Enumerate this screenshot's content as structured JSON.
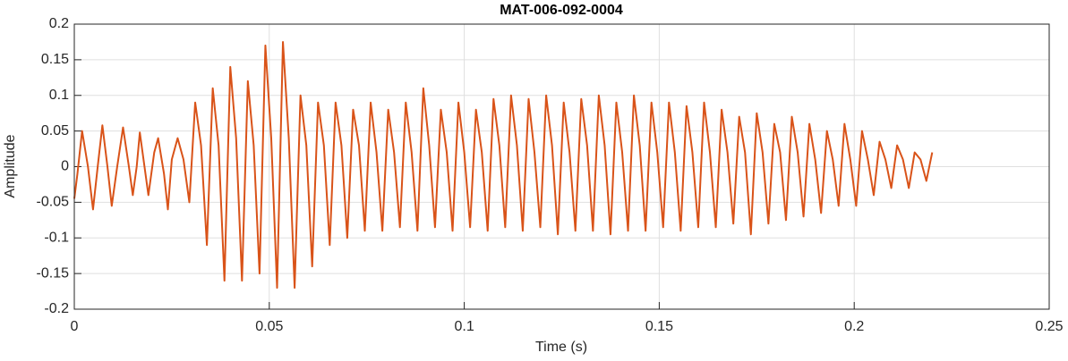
{
  "chart_data": {
    "type": "line",
    "title": "MAT-006-092-0004",
    "x_label": "Time (s)",
    "y_label": "Amplitude",
    "color": "#d95319",
    "grid": true,
    "xlim": [
      0,
      0.25
    ],
    "xticks": [
      0,
      0.05,
      0.1,
      0.15,
      0.2,
      0.25
    ],
    "ylim": [
      -0.2,
      0.2
    ],
    "yticks": [
      -0.2,
      -0.15,
      -0.1,
      -0.05,
      0,
      0.05,
      0.1,
      0.15,
      0.2
    ],
    "x": [
      0,
      0.0008,
      0.002,
      0.0035,
      0.0048,
      0.006,
      0.0072,
      0.0085,
      0.0096,
      0.011,
      0.0125,
      0.014,
      0.015,
      0.016,
      0.0168,
      0.018,
      0.019,
      0.0205,
      0.0215,
      0.023,
      0.024,
      0.025,
      0.0265,
      0.028,
      0.0295,
      0.031,
      0.0325,
      0.034,
      0.0355,
      0.037,
      0.0385,
      0.04,
      0.0415,
      0.043,
      0.0445,
      0.046,
      0.0475,
      0.049,
      0.0505,
      0.052,
      0.0535,
      0.055,
      0.0565,
      0.058,
      0.0595,
      0.061,
      0.0625,
      0.064,
      0.0655,
      0.067,
      0.0685,
      0.07,
      0.0715,
      0.073,
      0.0745,
      0.076,
      0.0775,
      0.079,
      0.0805,
      0.082,
      0.0835,
      0.085,
      0.0865,
      0.088,
      0.0895,
      0.091,
      0.0925,
      0.094,
      0.0955,
      0.097,
      0.0985,
      0.1,
      0.1015,
      0.103,
      0.1045,
      0.106,
      0.1075,
      0.109,
      0.1105,
      0.112,
      0.1135,
      0.115,
      0.1165,
      0.118,
      0.1195,
      0.121,
      0.1225,
      0.124,
      0.1255,
      0.127,
      0.1285,
      0.13,
      0.1315,
      0.133,
      0.1345,
      0.136,
      0.1375,
      0.139,
      0.1405,
      0.142,
      0.1435,
      0.145,
      0.1465,
      0.148,
      0.1495,
      0.151,
      0.1525,
      0.154,
      0.1555,
      0.157,
      0.1585,
      0.16,
      0.1615,
      0.163,
      0.1645,
      0.166,
      0.1675,
      0.169,
      0.1705,
      0.172,
      0.1735,
      0.175,
      0.1765,
      0.178,
      0.1795,
      0.181,
      0.1825,
      0.184,
      0.1855,
      0.187,
      0.1885,
      0.19,
      0.1915,
      0.193,
      0.1945,
      0.196,
      0.1975,
      0.199,
      0.2005,
      0.202,
      0.2035,
      0.205,
      0.2065,
      0.208,
      0.2095,
      0.211,
      0.2125,
      0.214,
      0.2155,
      0.217,
      0.2185,
      0.22
    ],
    "values": [
      -0.045,
      -0.01,
      0.05,
      0.0,
      -0.06,
      0.0,
      0.058,
      0.0,
      -0.055,
      0.0,
      0.055,
      0.0,
      -0.04,
      0.0,
      0.048,
      0.0,
      -0.04,
      0.02,
      0.04,
      -0.01,
      -0.06,
      0.01,
      0.04,
      0.01,
      -0.05,
      0.09,
      0.03,
      -0.11,
      0.11,
      0.03,
      -0.16,
      0.14,
      0.04,
      -0.16,
      0.12,
      0.03,
      -0.15,
      0.17,
      0.04,
      -0.17,
      0.175,
      0.04,
      -0.17,
      0.1,
      0.03,
      -0.14,
      0.09,
      0.03,
      -0.11,
      0.09,
      0.03,
      -0.1,
      0.08,
      0.03,
      -0.09,
      0.09,
      0.02,
      -0.09,
      0.08,
      0.02,
      -0.085,
      0.09,
      0.02,
      -0.09,
      0.11,
      0.03,
      -0.085,
      0.08,
      0.02,
      -0.09,
      0.09,
      0.02,
      -0.085,
      0.08,
      0.02,
      -0.09,
      0.095,
      0.03,
      -0.085,
      0.1,
      0.03,
      -0.09,
      0.095,
      0.02,
      -0.085,
      0.1,
      0.03,
      -0.095,
      0.09,
      0.02,
      -0.09,
      0.095,
      0.03,
      -0.09,
      0.1,
      0.03,
      -0.095,
      0.09,
      0.02,
      -0.09,
      0.1,
      0.03,
      -0.09,
      0.09,
      0.02,
      -0.085,
      0.09,
      0.02,
      -0.09,
      0.085,
      0.02,
      -0.085,
      0.09,
      0.02,
      -0.085,
      0.08,
      0.02,
      -0.08,
      0.07,
      0.02,
      -0.095,
      0.075,
      0.02,
      -0.08,
      0.06,
      0.02,
      -0.075,
      0.07,
      0.02,
      -0.07,
      0.06,
      0.01,
      -0.065,
      0.05,
      0.01,
      -0.055,
      0.06,
      0.01,
      -0.055,
      0.05,
      0.01,
      -0.04,
      0.035,
      0.01,
      -0.03,
      0.03,
      0.01,
      -0.03,
      0.02,
      0.01,
      -0.02,
      0.02
    ]
  }
}
